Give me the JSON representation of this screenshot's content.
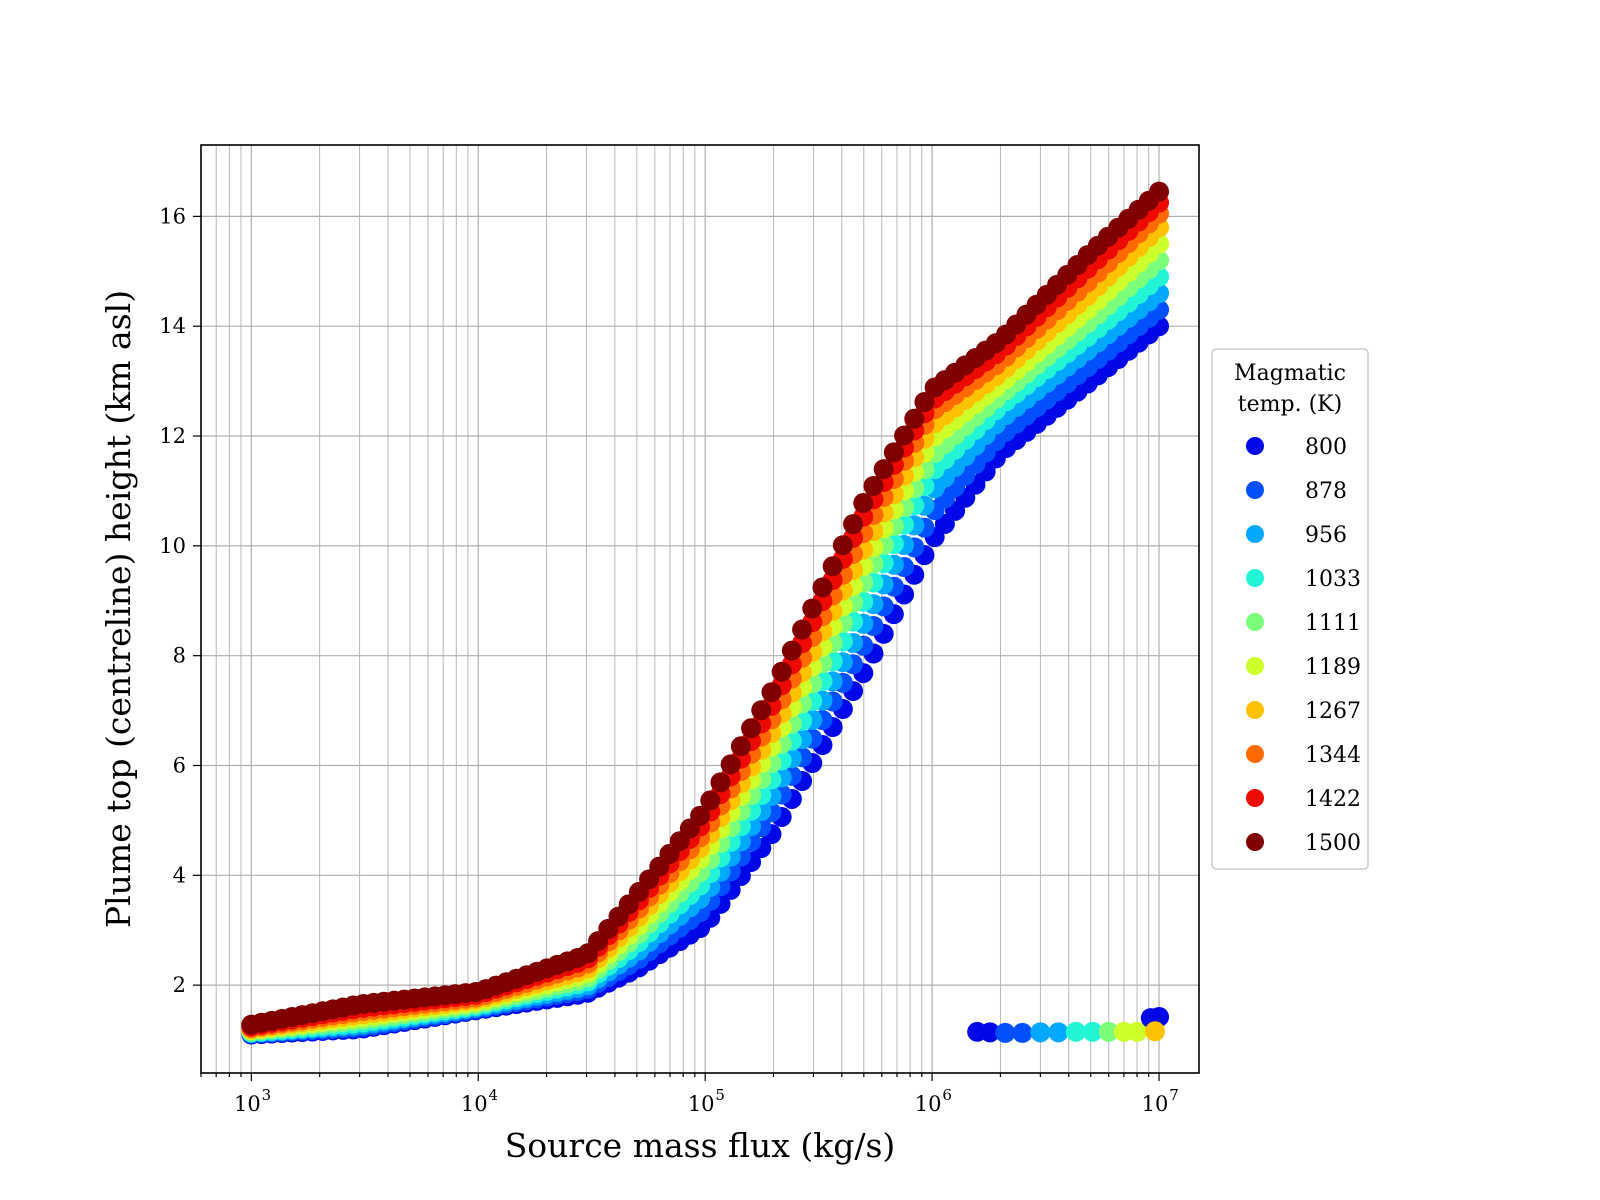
{
  "chart_data": {
    "type": "scatter",
    "xlabel": "Source mass flux (kg/s)",
    "ylabel": "Plume top (centreline) height (km asl)",
    "xscale": "log",
    "xlim": [
      600,
      15000000
    ],
    "ylim": [
      0.4,
      17.3
    ],
    "grid": true,
    "x_ticks": [
      {
        "value": 1000,
        "base": "10",
        "exp": "3"
      },
      {
        "value": 10000,
        "base": "10",
        "exp": "4"
      },
      {
        "value": 100000,
        "base": "10",
        "exp": "5"
      },
      {
        "value": 1000000,
        "base": "10",
        "exp": "6"
      },
      {
        "value": 10000000,
        "base": "10",
        "exp": "7"
      }
    ],
    "y_ticks": [
      2,
      4,
      6,
      8,
      10,
      12,
      14,
      16
    ],
    "legend": {
      "title_lines": [
        "Magmatic",
        "temp. (K)"
      ],
      "placement": "right"
    },
    "x": [
      1000,
      3000,
      10000,
      30000,
      50000,
      100000,
      200000,
      500000,
      1000000,
      2000000,
      5000000,
      10000000
    ],
    "series": [
      {
        "name": "800",
        "color": "#0008e8",
        "y": [
          1.1,
          1.2,
          1.55,
          1.85,
          2.3,
          3.1,
          4.8,
          7.7,
          10.1,
          11.7,
          13.0,
          14.0
        ]
      },
      {
        "name": "878",
        "color": "#0050ff",
        "y": [
          1.12,
          1.23,
          1.57,
          1.92,
          2.45,
          3.4,
          5.2,
          8.2,
          10.6,
          12.0,
          13.3,
          14.3
        ]
      },
      {
        "name": "956",
        "color": "#00a8ff",
        "y": [
          1.13,
          1.27,
          1.6,
          1.98,
          2.6,
          3.65,
          5.5,
          8.6,
          11.0,
          12.3,
          13.6,
          14.6
        ]
      },
      {
        "name": "1033",
        "color": "#22f5d5",
        "y": [
          1.14,
          1.31,
          1.63,
          2.05,
          2.75,
          3.9,
          5.8,
          9.0,
          11.35,
          12.55,
          13.85,
          14.9
        ]
      },
      {
        "name": "1111",
        "color": "#7bff7b",
        "y": [
          1.16,
          1.36,
          1.66,
          2.12,
          2.9,
          4.15,
          6.1,
          9.35,
          11.65,
          12.75,
          14.1,
          15.2
        ]
      },
      {
        "name": "1189",
        "color": "#cdff2a",
        "y": [
          1.18,
          1.41,
          1.7,
          2.2,
          3.05,
          4.4,
          6.4,
          9.65,
          11.95,
          12.95,
          14.35,
          15.5
        ]
      },
      {
        "name": "1267",
        "color": "#ffc200",
        "y": [
          1.2,
          1.46,
          1.74,
          2.28,
          3.2,
          4.6,
          6.65,
          9.95,
          12.2,
          13.15,
          14.6,
          15.8
        ]
      },
      {
        "name": "1344",
        "color": "#ff6a00",
        "y": [
          1.22,
          1.52,
          1.78,
          2.37,
          3.35,
          4.8,
          6.9,
          10.25,
          12.45,
          13.35,
          14.85,
          16.05
        ]
      },
      {
        "name": "1422",
        "color": "#ed0a00",
        "y": [
          1.25,
          1.58,
          1.83,
          2.46,
          3.5,
          5.0,
          7.15,
          10.55,
          12.65,
          13.55,
          15.1,
          16.25
        ]
      },
      {
        "name": "1500",
        "color": "#800000",
        "y": [
          1.28,
          1.65,
          1.88,
          2.55,
          3.65,
          5.2,
          7.4,
          10.8,
          12.85,
          13.75,
          15.35,
          16.45
        ]
      }
    ],
    "outlier_points": [
      {
        "x": 1580000,
        "y": 1.15,
        "series": "800"
      },
      {
        "x": 1800000,
        "y": 1.14,
        "series": "800"
      },
      {
        "x": 2100000,
        "y": 1.13,
        "series": "878"
      },
      {
        "x": 2500000,
        "y": 1.13,
        "series": "878"
      },
      {
        "x": 3000000,
        "y": 1.14,
        "series": "956"
      },
      {
        "x": 3600000,
        "y": 1.14,
        "series": "956"
      },
      {
        "x": 4300000,
        "y": 1.15,
        "series": "1033"
      },
      {
        "x": 5100000,
        "y": 1.15,
        "series": "1033"
      },
      {
        "x": 6000000,
        "y": 1.15,
        "series": "1111"
      },
      {
        "x": 7000000,
        "y": 1.15,
        "series": "1189"
      },
      {
        "x": 8000000,
        "y": 1.15,
        "series": "1189"
      },
      {
        "x": 9200000,
        "y": 1.4,
        "series": "800"
      },
      {
        "x": 10000000,
        "y": 1.42,
        "series": "800"
      },
      {
        "x": 9600000,
        "y": 1.16,
        "series": "1267"
      }
    ]
  }
}
